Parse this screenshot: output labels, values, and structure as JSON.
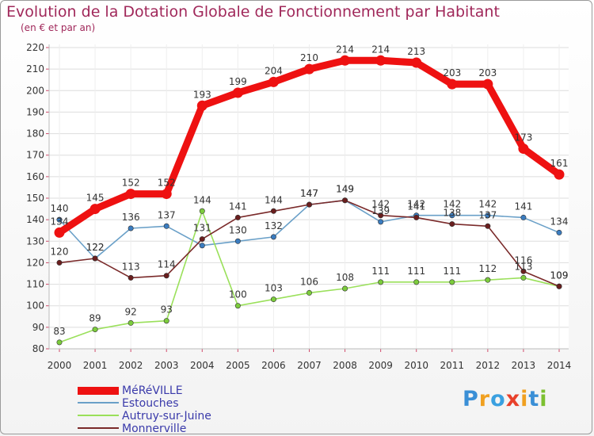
{
  "header": {
    "title": "Evolution de la Dotation Globale de Fonctionnement par Habitant",
    "subtitle": "(en € et par an)"
  },
  "logo": {
    "text": "Proxiti"
  },
  "chart_data": {
    "type": "line",
    "title": "Evolution de la Dotation Globale de Fonctionnement par Habitant",
    "subtitle": "(en € et par an)",
    "xlabel": "",
    "ylabel": "",
    "ylim": [
      80,
      220
    ],
    "yticks": [
      80,
      90,
      100,
      110,
      120,
      130,
      140,
      150,
      160,
      170,
      180,
      190,
      200,
      210,
      220
    ],
    "grid": "horizontal",
    "legend": "bottom-left",
    "categories": [
      "2000",
      "2001",
      "2002",
      "2003",
      "2004",
      "2005",
      "2006",
      "2007",
      "2008",
      "2009",
      "2010",
      "2011",
      "2012",
      "2013",
      "2014"
    ],
    "series": [
      {
        "name": "Estouches",
        "color": "#6aa0c8",
        "marker": "#3a7cc0",
        "values": [
          140,
          122,
          136,
          137,
          128,
          130,
          132,
          147,
          149,
          139,
          142,
          142,
          142,
          141,
          134
        ],
        "labels": [
          "140",
          "122",
          "136",
          "137",
          "",
          "130",
          "132",
          "147",
          "149",
          "139",
          "142",
          "142",
          "142",
          "141",
          "134"
        ]
      },
      {
        "name": "Autruy-sur-Juine",
        "color": "#9ae05a",
        "marker": "#7ccc3c",
        "values": [
          83,
          89,
          92,
          93,
          144,
          100,
          103,
          106,
          108,
          111,
          111,
          111,
          112,
          113,
          109
        ],
        "labels": [
          "83",
          "89",
          "92",
          "93",
          "144",
          "100",
          "103",
          "106",
          "108",
          "111",
          "111",
          "111",
          "112",
          "113",
          "109"
        ]
      },
      {
        "name": "Monnerville",
        "color": "#7a2a2a",
        "marker": "#6a1e1e",
        "values": [
          120,
          122,
          113,
          114,
          131,
          141,
          144,
          147,
          149,
          142,
          141,
          138,
          137,
          116,
          109
        ],
        "labels": [
          "120",
          "122",
          "113",
          "114",
          "131",
          "141",
          "144",
          "147",
          "149",
          "142",
          "141",
          "138",
          "137",
          "116",
          "109"
        ]
      },
      {
        "name": "MéRéVILLE",
        "color": "#ee1111",
        "marker": "#ee1111",
        "bold": true,
        "values": [
          134,
          145,
          152,
          152,
          193,
          199,
          204,
          210,
          214,
          214,
          213,
          203,
          203,
          173,
          161
        ],
        "labels": [
          "134",
          "145",
          "152",
          "152",
          "193",
          "199",
          "204",
          "210",
          "214",
          "214",
          "213",
          "203",
          "203",
          "173",
          "161"
        ]
      }
    ]
  }
}
